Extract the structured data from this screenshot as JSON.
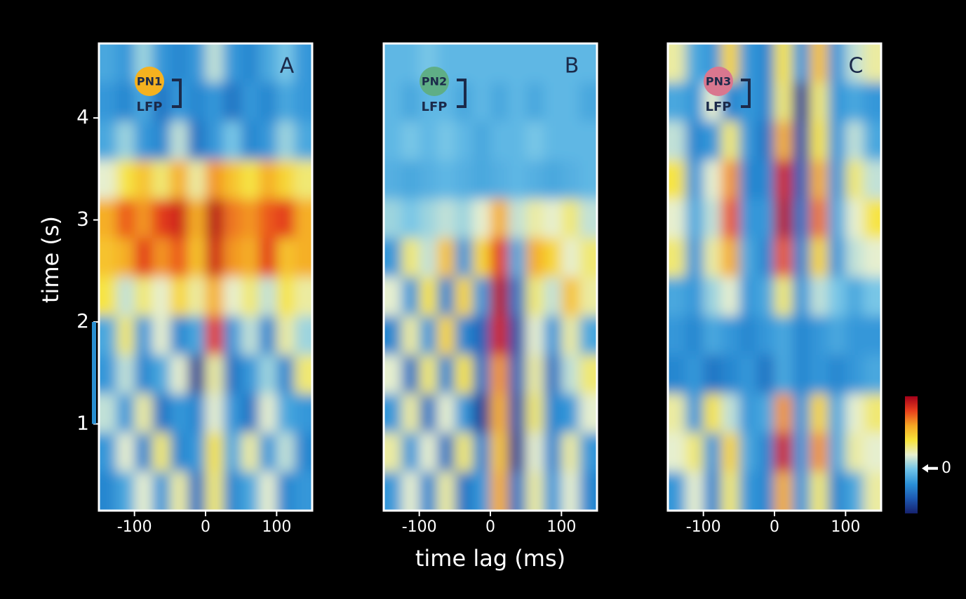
{
  "chart_data": [
    {
      "type": "heatmap",
      "panel": "A",
      "neuron": "PN1",
      "neuron_color": "#f5b21f",
      "reference": "LFP",
      "ylabel": "time (s)",
      "stimulus": [
        1,
        2
      ],
      "stimulus_color": "#2a8fd0",
      "xlim": [
        -150,
        150
      ],
      "xticks": [
        -100,
        0,
        100
      ],
      "ylim": [
        0.15,
        4.73
      ],
      "yticks": [
        1,
        2,
        3,
        4
      ],
      "z": [
        [
          -0.2,
          -0.3,
          0.1,
          -0.3,
          -0.4,
          -0.3,
          0.2,
          -0.3,
          -0.4,
          -0.2,
          0.0,
          -0.3
        ],
        [
          -0.3,
          -0.4,
          -0.2,
          -0.5,
          -0.3,
          -0.4,
          -0.3,
          -0.5,
          -0.3,
          -0.4,
          -0.2,
          -0.3
        ],
        [
          -0.2,
          0.1,
          -0.3,
          -0.4,
          0.2,
          -0.5,
          -0.3,
          0.0,
          -0.4,
          -0.3,
          0.1,
          -0.2
        ],
        [
          0.3,
          0.6,
          0.8,
          0.5,
          0.9,
          0.4,
          1.0,
          0.8,
          0.6,
          0.9,
          0.7,
          0.5
        ],
        [
          0.9,
          1.2,
          1.0,
          1.3,
          1.4,
          0.9,
          1.5,
          1.1,
          1.0,
          1.2,
          1.3,
          0.9
        ],
        [
          0.8,
          0.9,
          1.3,
          1.0,
          1.2,
          0.8,
          1.4,
          1.0,
          0.9,
          1.3,
          0.8,
          0.9
        ],
        [
          0.6,
          0.2,
          0.5,
          0.3,
          0.7,
          0.4,
          0.9,
          0.3,
          0.5,
          0.2,
          0.6,
          0.4
        ],
        [
          -0.2,
          0.5,
          -0.3,
          0.3,
          -0.4,
          -0.2,
          1.3,
          -0.3,
          0.2,
          -0.4,
          0.4,
          0.1
        ],
        [
          -0.3,
          0.2,
          -0.4,
          -0.2,
          0.3,
          -0.8,
          0.4,
          -0.5,
          -0.3,
          0.1,
          -0.4,
          0.5
        ],
        [
          0.2,
          -0.3,
          0.4,
          -0.5,
          -0.3,
          -0.4,
          0.3,
          -0.3,
          -0.5,
          0.3,
          -0.2,
          -0.3
        ],
        [
          -0.3,
          0.3,
          -0.4,
          0.5,
          -0.4,
          -0.3,
          0.6,
          -0.2,
          0.4,
          -0.3,
          0.2,
          -0.4
        ],
        [
          -0.4,
          -0.2,
          0.3,
          -0.3,
          0.4,
          -0.5,
          0.5,
          -0.4,
          -0.2,
          0.3,
          -0.4,
          -0.3
        ]
      ]
    },
    {
      "type": "heatmap",
      "panel": "B",
      "neuron": "PN2",
      "neuron_color": "#5fae86",
      "reference": "LFP",
      "xlabel": "time lag (ms)",
      "xlim": [
        -150,
        150
      ],
      "xticks": [
        -100,
        0,
        100
      ],
      "ylim": [
        0.15,
        4.73
      ],
      "z": [
        [
          -0.1,
          -0.1,
          0.0,
          -0.1,
          -0.1,
          -0.1,
          -0.1,
          -0.1,
          -0.1,
          -0.1,
          -0.1,
          -0.1
        ],
        [
          -0.1,
          -0.2,
          -0.1,
          -0.1,
          -0.2,
          -0.1,
          -0.2,
          -0.1,
          -0.2,
          -0.1,
          -0.1,
          -0.2
        ],
        [
          -0.1,
          0.0,
          -0.1,
          0.0,
          -0.1,
          -0.2,
          -0.1,
          -0.1,
          0.0,
          -0.1,
          -0.1,
          -0.1
        ],
        [
          -0.15,
          -0.2,
          -0.15,
          -0.1,
          -0.15,
          -0.2,
          -0.15,
          -0.1,
          -0.15,
          -0.2,
          -0.15,
          -0.1
        ],
        [
          0.1,
          0.0,
          0.1,
          0.2,
          0.1,
          0.3,
          0.9,
          0.2,
          0.4,
          0.3,
          0.5,
          0.2
        ],
        [
          -0.3,
          0.5,
          0.2,
          0.8,
          -0.3,
          0.7,
          1.3,
          -0.2,
          0.9,
          0.7,
          0.3,
          0.5
        ],
        [
          0.3,
          -0.3,
          0.6,
          -0.4,
          0.7,
          -0.3,
          1.5,
          -0.5,
          0.5,
          0.2,
          0.8,
          0.4
        ],
        [
          -0.4,
          0.4,
          -0.3,
          0.7,
          -0.4,
          -0.6,
          1.4,
          -0.7,
          0.3,
          -0.3,
          0.4,
          -0.2
        ],
        [
          0.3,
          -0.5,
          0.5,
          -0.4,
          0.6,
          -0.5,
          1.0,
          -0.6,
          0.4,
          -0.5,
          0.2,
          0.5
        ],
        [
          -0.3,
          0.4,
          -0.5,
          0.3,
          -0.3,
          -0.8,
          0.9,
          -0.7,
          0.5,
          -0.4,
          -0.3,
          0.3
        ],
        [
          0.4,
          -0.3,
          0.3,
          -0.5,
          0.5,
          -0.4,
          0.8,
          -0.8,
          0.3,
          -0.4,
          0.4,
          -0.3
        ],
        [
          -0.3,
          0.3,
          -0.4,
          0.4,
          -0.5,
          -0.3,
          0.9,
          -0.5,
          0.4,
          -0.3,
          0.3,
          -0.4
        ]
      ]
    },
    {
      "type": "heatmap",
      "panel": "C",
      "neuron": "PN3",
      "neuron_color": "#d9778f",
      "reference": "LFP",
      "xlim": [
        -150,
        150
      ],
      "xticks": [
        -100,
        0,
        100
      ],
      "ylim": [
        0.15,
        4.73
      ],
      "clim": [
        -1,
        1.6
      ],
      "cticks": [
        0
      ],
      "colorscale": [
        "#16226e",
        "#1d58b0",
        "#2a8fd6",
        "#6fc3e8",
        "#e6efcf",
        "#f7e33a",
        "#f5a623",
        "#e8401c",
        "#a3001a"
      ],
      "z": [
        [
          0.4,
          -0.2,
          -0.3,
          0.7,
          -0.3,
          -0.4,
          0.6,
          -0.3,
          0.8,
          -0.3,
          0.2,
          0.4
        ],
        [
          -0.2,
          -0.3,
          0.3,
          -0.4,
          -0.3,
          -0.4,
          0.5,
          -0.8,
          0.5,
          -0.3,
          -0.2,
          -0.3
        ],
        [
          0.2,
          -0.4,
          -0.3,
          0.5,
          -0.3,
          -0.5,
          0.9,
          -0.7,
          0.6,
          -0.3,
          0.2,
          -0.2
        ],
        [
          0.6,
          -0.3,
          0.3,
          1.0,
          -0.4,
          -0.4,
          1.4,
          -0.6,
          0.9,
          -0.3,
          0.5,
          0.2
        ],
        [
          0.3,
          -0.2,
          0.2,
          1.2,
          -0.3,
          -0.3,
          1.5,
          -0.5,
          1.1,
          -0.2,
          0.3,
          0.6
        ],
        [
          0.5,
          -0.3,
          0.4,
          0.9,
          -0.2,
          -0.4,
          1.2,
          -0.4,
          0.7,
          -0.3,
          0.2,
          0.3
        ],
        [
          -0.2,
          -0.3,
          0.1,
          0.3,
          -0.3,
          -0.2,
          0.5,
          -0.3,
          0.2,
          0.0,
          -0.2,
          0.0
        ],
        [
          -0.3,
          -0.4,
          -0.2,
          -0.3,
          -0.4,
          -0.3,
          -0.2,
          -0.4,
          -0.3,
          -0.2,
          -0.3,
          -0.3
        ],
        [
          -0.4,
          -0.3,
          -0.5,
          -0.4,
          -0.3,
          -0.5,
          -0.2,
          -0.4,
          -0.3,
          -0.4,
          -0.3,
          -0.2
        ],
        [
          0.4,
          -0.3,
          0.6,
          0.2,
          -0.3,
          -0.2,
          1.0,
          -0.3,
          0.7,
          -0.2,
          0.3,
          0.5
        ],
        [
          0.3,
          0.5,
          -0.3,
          0.7,
          -0.2,
          -0.4,
          1.4,
          -0.3,
          1.0,
          -0.2,
          0.4,
          0.3
        ],
        [
          -0.3,
          0.3,
          -0.4,
          0.5,
          -0.3,
          -0.4,
          0.9,
          -0.3,
          0.5,
          -0.4,
          -0.2,
          0.4
        ]
      ]
    }
  ]
}
